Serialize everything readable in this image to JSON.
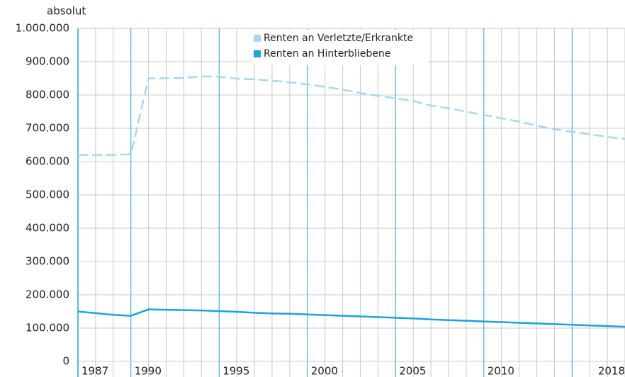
{
  "chart_data": {
    "type": "line",
    "y_axis_label": "absolut",
    "x": [
      1987,
      1988,
      1989,
      1990,
      1991,
      1992,
      1993,
      1994,
      1995,
      1996,
      1997,
      1998,
      1999,
      2000,
      2001,
      2002,
      2003,
      2004,
      2005,
      2006,
      2007,
      2008,
      2009,
      2010,
      2011,
      2012,
      2013,
      2014,
      2015,
      2016,
      2017,
      2018
    ],
    "xlim": [
      1987,
      2018
    ],
    "xticks": [
      1987,
      1990,
      1995,
      2000,
      2005,
      2010,
      2018
    ],
    "ylim": [
      0,
      1000000
    ],
    "yticks": [
      0,
      {
        "value": 100000,
        "label": "100.000"
      },
      {
        "value": 200000,
        "label": "200.000"
      },
      {
        "value": 300000,
        "label": "300.000"
      },
      {
        "value": 400000,
        "label": "400.000"
      },
      {
        "value": 500000,
        "label": "500.000"
      },
      {
        "value": 600000,
        "label": "600.000"
      },
      {
        "value": 700000,
        "label": "700.000"
      },
      {
        "value": 800000,
        "label": "800.000"
      },
      {
        "value": 900000,
        "label": "900.000"
      },
      {
        "value": 1000000,
        "label": "1.000.000"
      }
    ],
    "grid": true,
    "series": [
      {
        "name": "Renten an Verletzte/Erkrankte",
        "color": "#a6d8f0",
        "dashed": true,
        "values": [
          620000,
          620000,
          620000,
          622000,
          850000,
          850000,
          851000,
          856000,
          855000,
          849000,
          847000,
          843000,
          838000,
          832000,
          824000,
          816000,
          806000,
          797000,
          790000,
          782000,
          768000,
          760000,
          750000,
          740000,
          730000,
          720000,
          708000,
          697000,
          690000,
          682000,
          674000,
          668000
        ]
      },
      {
        "name": "Renten an Hinterbliebene",
        "color": "#1aa3dc",
        "dashed": false,
        "values": [
          150000,
          145000,
          140000,
          137000,
          156000,
          155000,
          154000,
          153000,
          151000,
          149000,
          146000,
          144000,
          143000,
          141000,
          139000,
          137000,
          135000,
          133000,
          131000,
          129000,
          126000,
          124000,
          122000,
          120000,
          118000,
          116000,
          114000,
          112000,
          110000,
          108000,
          106000,
          104000
        ]
      }
    ]
  }
}
